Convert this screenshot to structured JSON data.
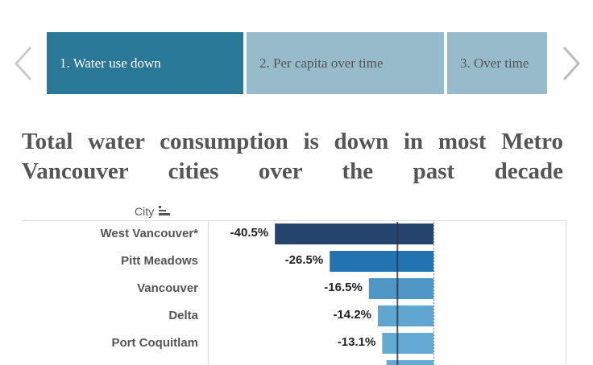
{
  "nav": {
    "tabs": [
      {
        "label": "1. Water use down",
        "active": true
      },
      {
        "label": "2. Per capita over time",
        "active": false
      },
      {
        "label": "3. Over time",
        "active": false
      }
    ],
    "prev_icon": "chevron-left-icon",
    "next_icon": "chevron-right-icon",
    "active_color": "#297895",
    "inactive_color": "#96bccb"
  },
  "title_lines": [
    "Total water consumption is down in most Metro",
    "Vancouver cities over the past decade"
  ],
  "chart_data": {
    "type": "bar",
    "orientation": "horizontal",
    "column_header": "City",
    "sort_icon": "sort-descending-icon",
    "categories": [
      "West Vancouver*",
      "Pitt Meadows",
      "Vancouver",
      "Delta",
      "Port Coquitlam"
    ],
    "values": [
      -40.5,
      -26.5,
      -16.5,
      -14.2,
      -13.1
    ],
    "labels": [
      "-40.5%",
      "-26.5%",
      "-16.5%",
      "-14.2%",
      "-13.1%"
    ],
    "partial_last_bar_value": -12.0,
    "colors": [
      "#24456e",
      "#2173b1",
      "#4e97c6",
      "#5fa7d2",
      "#63abd4"
    ],
    "reference_line_value": -9.2
  }
}
